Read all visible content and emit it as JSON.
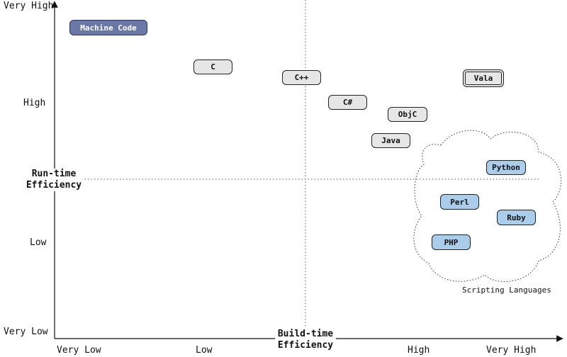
{
  "axes": {
    "y_title": "Run-time\nEfficiency",
    "x_title": "Build-time\nEfficiency",
    "y_ticks": [
      "Very High",
      "High",
      "Low",
      "Very Low"
    ],
    "x_ticks": [
      "Very Low",
      "Low",
      "High",
      "Very High"
    ]
  },
  "languages": [
    {
      "label": "Machine Code",
      "style": "machine"
    },
    {
      "label": "C",
      "style": "compiled"
    },
    {
      "label": "C++",
      "style": "compiled"
    },
    {
      "label": "Vala",
      "style": "compiled-double"
    },
    {
      "label": "C#",
      "style": "compiled"
    },
    {
      "label": "ObjC",
      "style": "compiled"
    },
    {
      "label": "Java",
      "style": "compiled"
    },
    {
      "label": "Python",
      "style": "scripting"
    },
    {
      "label": "Perl",
      "style": "scripting"
    },
    {
      "label": "Ruby",
      "style": "scripting"
    },
    {
      "label": "PHP",
      "style": "scripting"
    }
  ],
  "group": {
    "label": "Scripting Languages"
  },
  "colors": {
    "compiled_fill": "#e6e6e6",
    "scripting_fill": "#a9cdeb",
    "machine_fill": "#6a78a8"
  }
}
